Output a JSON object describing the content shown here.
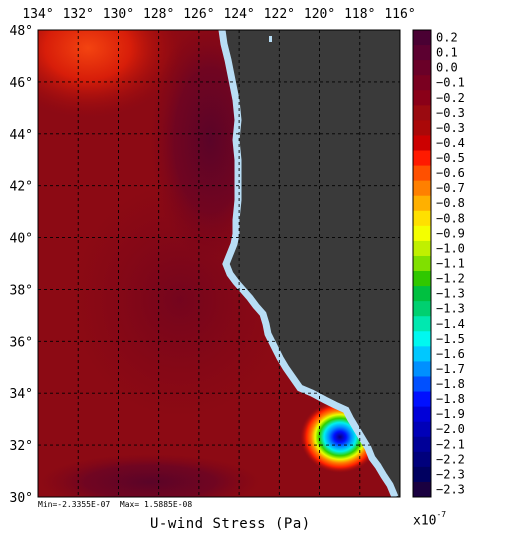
{
  "map": {
    "lon_labels": [
      "134°",
      "132°",
      "130°",
      "128°",
      "126°",
      "124°",
      "122°",
      "120°",
      "118°",
      "116°"
    ],
    "lat_labels": [
      "48°",
      "46°",
      "44°",
      "42°",
      "40°",
      "38°",
      "36°",
      "34°",
      "32°",
      "30°"
    ],
    "lon_range": [
      134,
      116
    ],
    "lat_range": [
      48,
      30
    ],
    "title": "U-wind Stress (Pa)",
    "min_label": "Min=-2.3355E-07",
    "max_label": "Max= 1.5885E-08",
    "scale_base": "x10",
    "scale_exp": "-7"
  },
  "colorbar": {
    "labels": [
      "0.2",
      "0.1",
      "0.0",
      "−0.1",
      "−0.2",
      "−0.3",
      "−0.3",
      "−0.4",
      "−0.5",
      "−0.6",
      "−0.7",
      "−0.8",
      "−0.8",
      "−0.9",
      "−1.0",
      "−1.1",
      "−1.2",
      "−1.3",
      "−1.3",
      "−1.4",
      "−1.5",
      "−1.6",
      "−1.7",
      "−1.8",
      "−1.8",
      "−1.9",
      "−2.0",
      "−2.1",
      "−2.2",
      "−2.3",
      "−2.3"
    ],
    "colors": [
      "#4a0033",
      "#5c0030",
      "#6a0028",
      "#7a0020",
      "#8a0018",
      "#9a0a10",
      "#aa0808",
      "#cc0000",
      "#ff1a00",
      "#ff5000",
      "#ff8000",
      "#ffb000",
      "#ffe000",
      "#f4ff00",
      "#c0f000",
      "#80e000",
      "#30c800",
      "#00c040",
      "#00d070",
      "#00e8b0",
      "#00f8f0",
      "#00c8ff",
      "#0090ff",
      "#0050ff",
      "#0010ff",
      "#0000d8",
      "#0000b8",
      "#000098",
      "#00007c",
      "#000060",
      "#1a0040"
    ]
  },
  "colors": {
    "land": "#3a3a3a",
    "coast": "#b8ddf5",
    "base_field": "#8c0a14"
  }
}
